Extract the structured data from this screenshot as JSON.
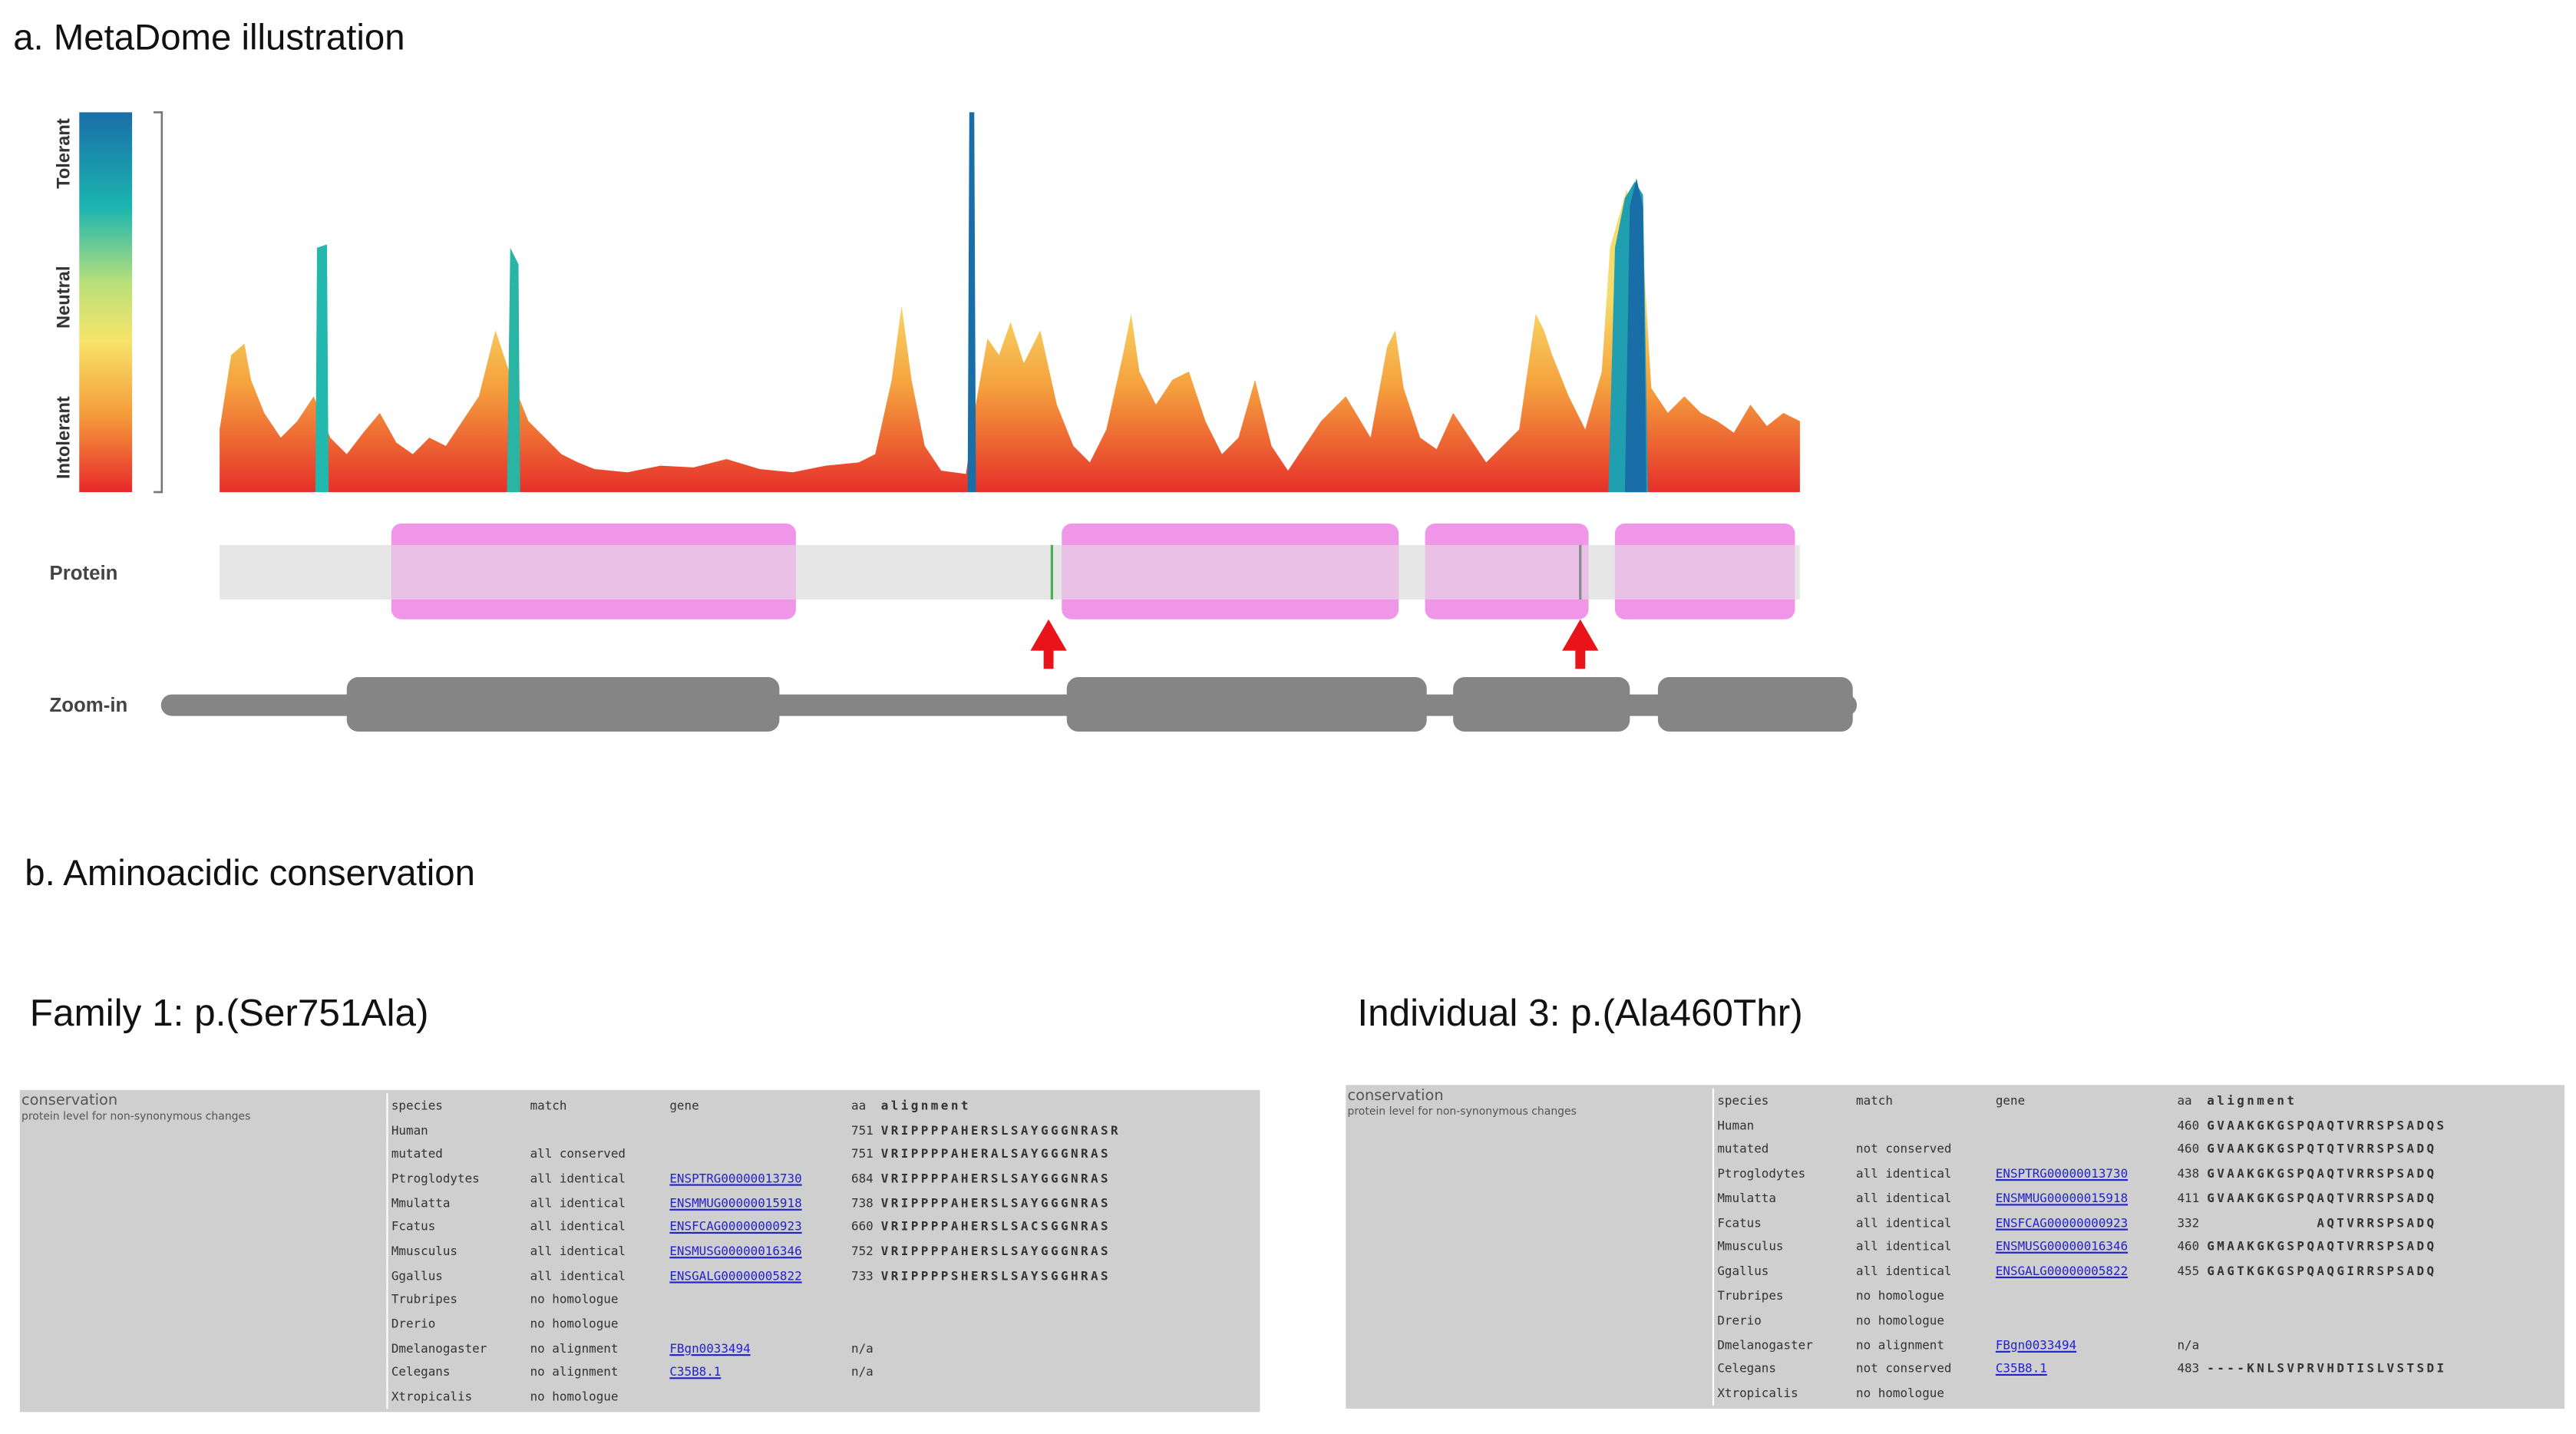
{
  "panel_a": {
    "title": "a. MetaDome illustration",
    "legend": [
      "Tolerant",
      "Neutral",
      "Intolerant"
    ],
    "tracks": [
      "Protein",
      "Zoom-in"
    ]
  },
  "panel_b": {
    "title": "b. Aminoacidic conservation",
    "tables": [
      {
        "title": "Family 1: p.(Ser751Ala)",
        "heading": "conservation",
        "note": "protein level for non-synonymous changes",
        "columns": [
          "species",
          "match",
          "gene",
          "aa",
          "alignment"
        ],
        "rows": [
          {
            "species": "Human",
            "aa": 751,
            "alignment": "VRIPPPPAHERSLSAYGGGNRASR"
          },
          {
            "species": "mutated",
            "match": "all conserved",
            "aa": 751,
            "alignment": "VRIPPPPAHERALSAYGGGNRAS"
          },
          {
            "species": "Ptroglodytes",
            "match": "all identical",
            "gene": "ENSPTRG00000013730",
            "aa": 684,
            "alignment": "VRIPPPPAHERSLSAYGGGNRAS"
          },
          {
            "species": "Mmulatta",
            "match": "all identical",
            "gene": "ENSMMUG00000015918",
            "aa": 738,
            "alignment": "VRIPPPPAHERSLSAYGGGNRAS"
          },
          {
            "species": "Fcatus",
            "match": "all identical",
            "gene": "ENSFCAG00000000923",
            "aa": 660,
            "alignment": "VRIPPPPAHERSLSACSGGNRAS"
          },
          {
            "species": "Mmusculus",
            "match": "all identical",
            "gene": "ENSMUSG00000016346",
            "aa": 752,
            "alignment": "VRIPPPPAHERSLSAYGGGNRAS"
          },
          {
            "species": "Ggallus",
            "match": "all identical",
            "gene": "ENSGALG00000005822",
            "aa": 733,
            "alignment": "VRIPPPPSHERSLSAYSGGHRAS"
          },
          {
            "species": "Trubripes",
            "match": "no homologue"
          },
          {
            "species": "Drerio",
            "match": "no homologue"
          },
          {
            "species": "Dmelanogaster",
            "match": "no alignment",
            "gene": "FBgn0033494",
            "aa": "n/a"
          },
          {
            "species": "Celegans",
            "match": "no alignment",
            "gene": "C35B8.1",
            "aa": "n/a"
          },
          {
            "species": "Xtropicalis",
            "match": "no homologue"
          }
        ]
      },
      {
        "title": "Individual 3: p.(Ala460Thr)",
        "heading": "conservation",
        "note": "protein level for non-synonymous changes",
        "columns": [
          "species",
          "match",
          "gene",
          "aa",
          "alignment"
        ],
        "rows": [
          {
            "species": "Human",
            "aa": 460,
            "alignment": "GVAAKGKGSPQAQTVRRSPSADQS"
          },
          {
            "species": "mutated",
            "match": "not conserved",
            "aa": 460,
            "alignment": "GVAAKGKGSPQTQTVRRSPSADQ"
          },
          {
            "species": "Ptroglodytes",
            "match": "all identical",
            "gene": "ENSPTRG00000013730",
            "aa": 438,
            "alignment": "GVAAKGKGSPQAQTVRRSPSADQ"
          },
          {
            "species": "Mmulatta",
            "match": "all identical",
            "gene": "ENSMMUG00000015918",
            "aa": 411,
            "alignment": "GVAAKGKGSPQAQTVRRSPSADQ"
          },
          {
            "species": "Fcatus",
            "match": "all identical",
            "gene": "ENSFCAG00000000923",
            "aa": 332,
            "alignment": "           AQTVRRSPSADQ"
          },
          {
            "species": "Mmusculus",
            "match": "all identical",
            "gene": "ENSMUSG00000016346",
            "aa": 460,
            "alignment": "GMAAKGKGSPQAQTVRRSPSADQ"
          },
          {
            "species": "Ggallus",
            "match": "all identical",
            "gene": "ENSGALG00000005822",
            "aa": 455,
            "alignment": "GAGTKGKGSPQAQGIRRSPSADQ"
          },
          {
            "species": "Trubripes",
            "match": "no homologue"
          },
          {
            "species": "Drerio",
            "match": "no homologue"
          },
          {
            "species": "Dmelanogaster",
            "match": "no alignment",
            "gene": "FBgn0033494",
            "aa": "n/a"
          },
          {
            "species": "Celegans",
            "match": "not conserved",
            "gene": "C35B8.1",
            "aa": 483,
            "alignment": "----KNLSVPRVHDTISLVSTSDI"
          },
          {
            "species": "Xtropicalis",
            "match": "no homologue"
          }
        ]
      }
    ]
  }
}
